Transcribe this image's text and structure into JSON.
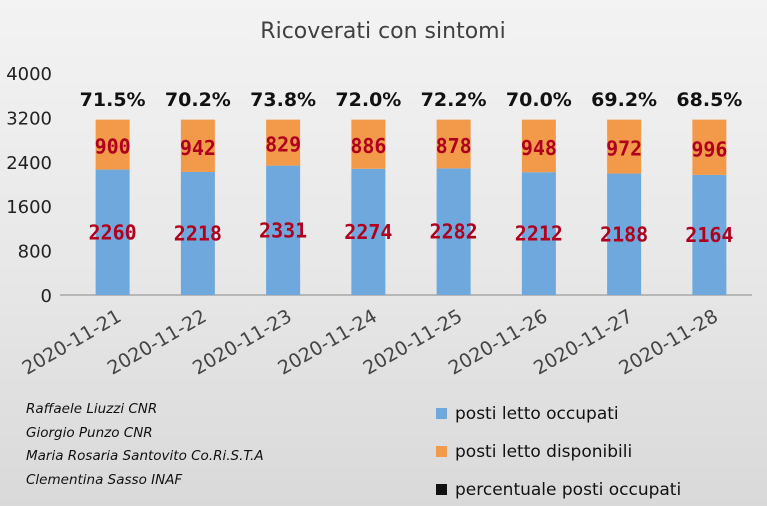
{
  "chart_data": {
    "type": "bar",
    "stacked": true,
    "title": "Ricoverati con sintomi",
    "categories": [
      "2020-11-21",
      "2020-11-22",
      "2020-11-23",
      "2020-11-24",
      "2020-11-25",
      "2020-11-26",
      "2020-11-27",
      "2020-11-28"
    ],
    "series": [
      {
        "name": "posti letto occupati",
        "color": "#6fa8dc",
        "values": [
          2260,
          2218,
          2331,
          2274,
          2282,
          2212,
          2188,
          2164
        ]
      },
      {
        "name": "posti letto disponibili",
        "color": "#f29a4a",
        "values": [
          900,
          942,
          829,
          886,
          878,
          948,
          972,
          996
        ]
      }
    ],
    "percent_labels": [
      "71.5%",
      "70.2%",
      "73.8%",
      "72.0%",
      "72.2%",
      "70.0%",
      "69.2%",
      "68.5%"
    ],
    "percent_series": {
      "name": "percentuale posti occupati",
      "color": "#111111"
    },
    "ylim": [
      0,
      4000
    ],
    "yticks": [
      "0",
      "800",
      "1600",
      "2400",
      "3200",
      "4000"
    ],
    "ytick_values": [
      0,
      800,
      1600,
      2400,
      3200,
      4000
    ],
    "legend_position": "bottom-right",
    "grid": false
  },
  "credits": [
    "Raffaele Liuzzi CNR",
    "Giorgio Punzo CNR",
    "Maria Rosaria Santovito Co.Ri.S.T.A",
    "Clementina Sasso INAF"
  ]
}
